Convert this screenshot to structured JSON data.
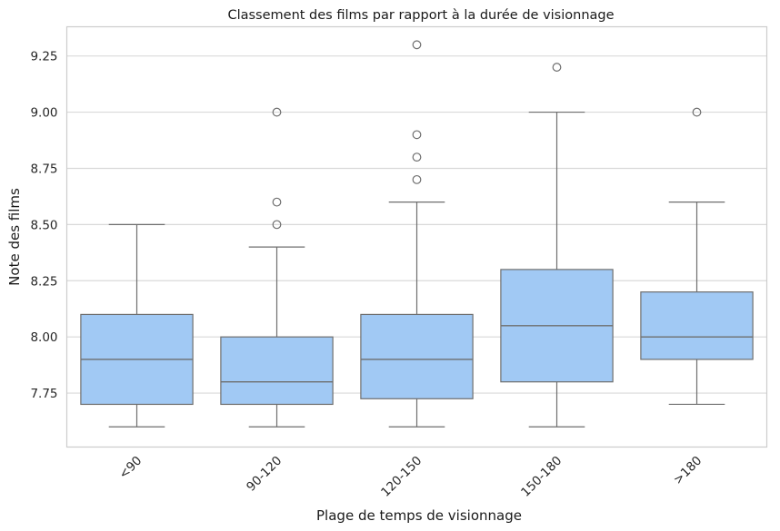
{
  "chart_data": {
    "type": "box",
    "title": "Classement des films par rapport à la durée de visionnage",
    "xlabel": "Plage de temps de visionnage",
    "ylabel": "Note des films",
    "categories": [
      "<90",
      "90-120",
      "120-150",
      "150-180",
      ">180"
    ],
    "ylim": [
      7.51,
      9.38
    ],
    "yticks": [
      7.75,
      8.0,
      8.25,
      8.5,
      8.75,
      9.0,
      9.25
    ],
    "ytick_labels": [
      "7.75",
      "8.00",
      "8.25",
      "8.50",
      "8.75",
      "9.00",
      "9.25"
    ],
    "grid": true,
    "boxes": [
      {
        "category": "<90",
        "whisker_low": 7.6,
        "q1": 7.7,
        "median": 7.9,
        "q3": 8.1,
        "whisker_high": 8.5,
        "outliers": []
      },
      {
        "category": "90-120",
        "whisker_low": 7.6,
        "q1": 7.7,
        "median": 7.8,
        "q3": 8.0,
        "whisker_high": 8.4,
        "outliers": [
          8.5,
          8.6,
          9.0
        ]
      },
      {
        "category": "120-150",
        "whisker_low": 7.6,
        "q1": 7.725,
        "median": 7.9,
        "q3": 8.1,
        "whisker_high": 8.6,
        "outliers": [
          8.7,
          8.8,
          8.9,
          9.3
        ]
      },
      {
        "category": "150-180",
        "whisker_low": 7.6,
        "q1": 7.8,
        "median": 8.05,
        "q3": 8.3,
        "whisker_high": 9.0,
        "outliers": [
          9.2
        ]
      },
      {
        "category": ">180",
        "whisker_low": 7.7,
        "q1": 7.9,
        "median": 8.0,
        "q3": 8.2,
        "whisker_high": 8.6,
        "outliers": [
          9.0
        ]
      }
    ],
    "colors": {
      "box_fill": "#a1c9f4",
      "line": "#6e6e6e",
      "grid": "#d9d9d9",
      "spine": "#cccccc"
    }
  }
}
